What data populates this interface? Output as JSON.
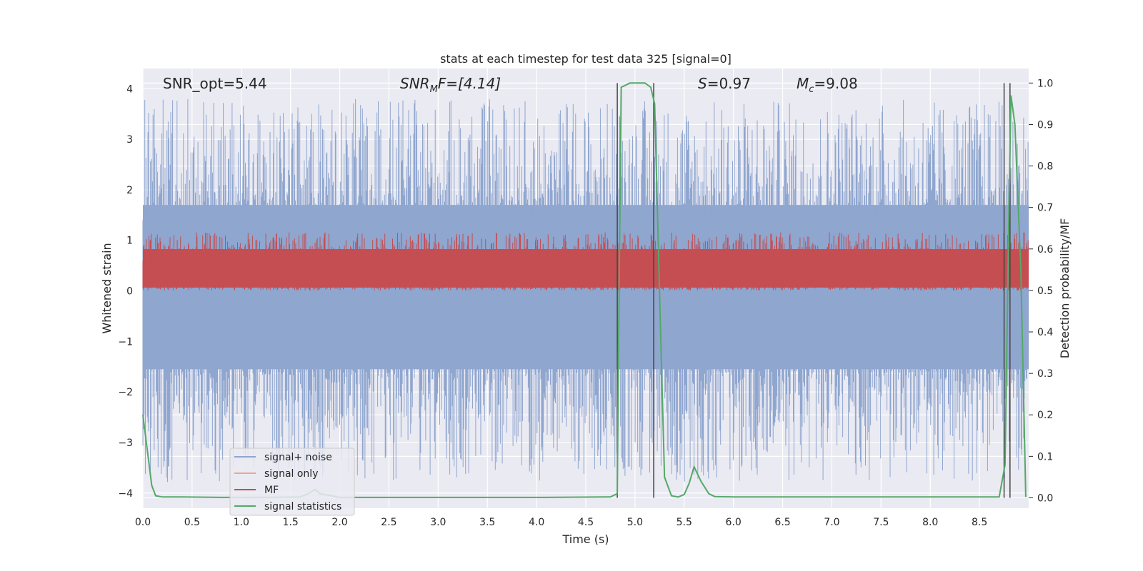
{
  "chart_data": {
    "type": "line",
    "title": "stats at each timestep for test data 325 [signal=0]",
    "xlabel": "Time (s)",
    "ylabel": "Whitened strain",
    "y2label": "Detection probability/MF",
    "xlim": [
      0.0,
      9.0
    ],
    "ylim": [
      -4.3,
      4.4
    ],
    "y2lim": [
      -0.025,
      1.035
    ],
    "xticks": [
      0.0,
      0.5,
      1.0,
      1.5,
      2.0,
      2.5,
      3.0,
      3.5,
      4.0,
      4.5,
      5.0,
      5.5,
      6.0,
      6.5,
      7.0,
      7.5,
      8.0,
      8.5
    ],
    "xtick_labels": [
      "0.0",
      "0.5",
      "1.0",
      "1.5",
      "2.0",
      "2.5",
      "3.0",
      "3.5",
      "4.0",
      "4.5",
      "5.0",
      "5.5",
      "6.0",
      "6.5",
      "7.0",
      "7.5",
      "8.0",
      "8.5"
    ],
    "yticks": [
      4,
      3,
      2,
      1,
      0,
      -1,
      -2,
      -3,
      -4
    ],
    "ytick_labels": [
      "4",
      "3",
      "2",
      "1",
      "0",
      "−1",
      "−2",
      "−3",
      "−4"
    ],
    "y2ticks": [
      1.0,
      0.9,
      0.8,
      0.7,
      0.6,
      0.5,
      0.4,
      0.3,
      0.2,
      0.1,
      0.0
    ],
    "y2tick_labels": [
      "1.0",
      "0.9",
      "0.8",
      "0.7",
      "0.6",
      "0.5",
      "0.4",
      "0.3",
      "0.2",
      "0.1",
      "0.0"
    ],
    "annotations": {
      "snr_opt": "SNR_opt=5.44",
      "snr_mf_main": "SNR",
      "snr_mf_sub": "M",
      "snr_mf_rest": "F=[4.14]",
      "s_main": "S",
      "s_rest": "=0.97",
      "mc_main": "M",
      "mc_sub": "c",
      "mc_rest": "=9.08"
    },
    "legend": {
      "placement": "lower-left",
      "entries": [
        {
          "label": "signal+ noise",
          "color": "#8fa6cf"
        },
        {
          "label": "signal only",
          "color": "#e8a88f"
        },
        {
          "label": "MF",
          "color": "#c44e52"
        },
        {
          "label": "signal statistics",
          "color": "#55a868"
        }
      ]
    },
    "series": [
      {
        "name": "signal statistics",
        "axis": "y2",
        "color": "#55a868",
        "x": [
          0.0,
          0.09,
          0.13,
          0.2,
          0.4,
          0.8,
          1.2,
          1.6,
          1.68,
          1.75,
          1.8,
          2.0,
          3.0,
          4.0,
          4.7,
          4.75,
          4.82,
          4.83,
          4.86,
          4.95,
          5.1,
          5.16,
          5.2,
          5.26,
          5.3,
          5.37,
          5.44,
          5.5,
          5.55,
          5.6,
          5.67,
          5.75,
          5.81,
          6.0,
          7.0,
          8.0,
          8.5,
          8.7,
          8.76,
          8.8,
          8.82,
          8.86,
          8.92,
          8.97
        ],
        "y": [
          0.2,
          0.03,
          0.005,
          0.002,
          0.002,
          0.001,
          0.001,
          0.002,
          0.01,
          0.02,
          0.01,
          0.001,
          0.001,
          0.001,
          0.002,
          0.002,
          0.01,
          0.3,
          0.99,
          1.0,
          1.0,
          0.99,
          0.95,
          0.4,
          0.05,
          0.005,
          0.002,
          0.008,
          0.035,
          0.075,
          0.04,
          0.01,
          0.003,
          0.002,
          0.002,
          0.002,
          0.002,
          0.002,
          0.08,
          0.7,
          0.97,
          0.9,
          0.55,
          0.002
        ]
      }
    ],
    "noise_band": {
      "name": "signal+ noise",
      "color": "#8fa6cf",
      "core_range": [
        -1.55,
        1.7
      ],
      "peak_range": [
        -4.0,
        4.0
      ]
    },
    "mf_band": {
      "name": "MF",
      "color": "#c44e52",
      "axis": "y2",
      "range": [
        0.5,
        0.61
      ]
    },
    "vlines": [
      4.82,
      5.19,
      8.75,
      8.81
    ]
  }
}
